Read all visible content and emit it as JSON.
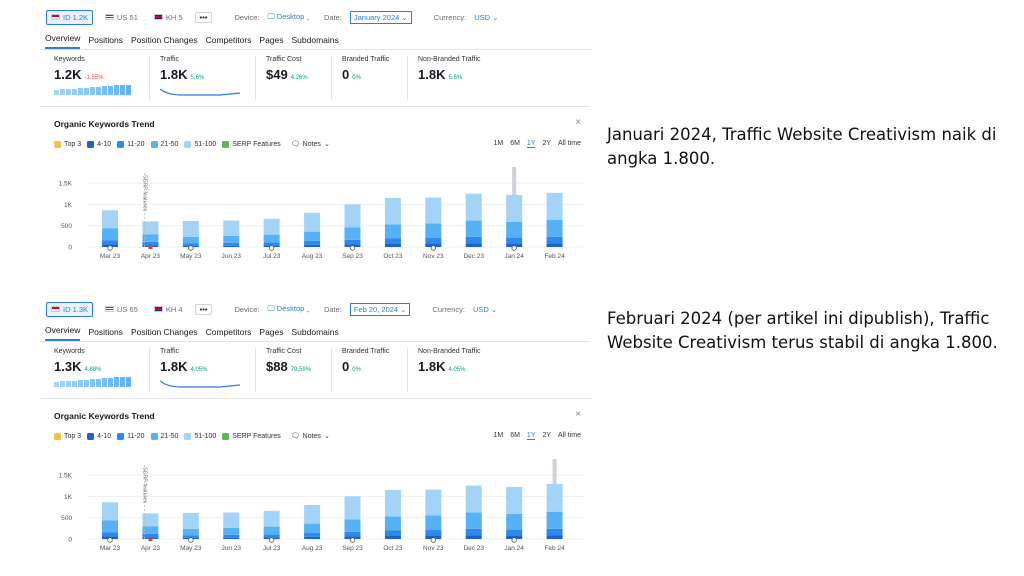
{
  "panels": [
    {
      "toolbar": {
        "databases": [
          {
            "flag": "id",
            "label": "ID 1.2K",
            "active": true
          },
          {
            "flag": "us",
            "label": "US 51",
            "active": false
          },
          {
            "flag": "kh",
            "label": "KH 5",
            "active": false
          }
        ],
        "more": "•••",
        "device_label": "Device:",
        "device_value": "Desktop",
        "date_label": "Date:",
        "date_value": "January 2024",
        "currency_label": "Currency:",
        "currency_value": "USD"
      },
      "tabs": [
        "Overview",
        "Positions",
        "Position Changes",
        "Competitors",
        "Pages",
        "Subdomains"
      ],
      "metrics": [
        {
          "label": "Keywords",
          "value": "1.2K",
          "delta": "-1.55%",
          "negative": true,
          "spark": "bars"
        },
        {
          "label": "Traffic",
          "value": "1.8K",
          "delta": "5.6%",
          "negative": false,
          "spark": "line"
        },
        {
          "label": "Traffic Cost",
          "value": "$49",
          "delta": "4.26%",
          "negative": false,
          "spark": "none"
        },
        {
          "label": "Branded Traffic",
          "value": "0",
          "delta": "0%",
          "negative": false,
          "spark": "none"
        },
        {
          "label": "Non-Branded Traffic",
          "value": "1.8K",
          "delta": "5.6%",
          "negative": false,
          "spark": "none"
        }
      ],
      "trend": {
        "title": "Organic Keywords Trend",
        "close": "×",
        "legend": [
          {
            "label": "Top 3",
            "color": "#f5c342"
          },
          {
            "label": "4-10",
            "color": "#1e63c9"
          },
          {
            "label": "11-20",
            "color": "#2a8af0"
          },
          {
            "label": "21-50",
            "color": "#56b1f5"
          },
          {
            "label": "51-100",
            "color": "#a3d4f8"
          },
          {
            "label": "SERP Features",
            "color": "#5cb85c"
          }
        ],
        "notes": "Notes",
        "ranges": [
          "1M",
          "6M",
          "1Y",
          "2Y",
          "All time"
        ],
        "active_range": "1Y",
        "serp_annotation": "SERP features"
      },
      "chart_data": {
        "type": "bar",
        "categories": [
          "Mar 23",
          "Apr 23",
          "May 23",
          "Jun 23",
          "Jul 23",
          "Aug 23",
          "Sep 23",
          "Oct 23",
          "Nov 23",
          "Dec 23",
          "Jan 24",
          "Feb 24"
        ],
        "y_ticks": [
          "1.5K",
          "1K",
          "500",
          "0"
        ],
        "ylim": [
          0,
          1500
        ],
        "series": [
          {
            "name": "4-10",
            "values": [
              60,
              40,
              30,
              30,
              40,
              50,
              60,
              80,
              80,
              90,
              80,
              90
            ]
          },
          {
            "name": "11-20",
            "values": [
              100,
              80,
              60,
              70,
              70,
              90,
              110,
              120,
              130,
              150,
              140,
              150
            ]
          },
          {
            "name": "21-50",
            "values": [
              280,
              180,
              150,
              160,
              180,
              220,
              290,
              330,
              340,
              380,
              370,
              400
            ]
          },
          {
            "name": "51-100",
            "values": [
              420,
              300,
              370,
              360,
              370,
              440,
              540,
              620,
              610,
              630,
              630,
              630
            ]
          }
        ],
        "highlight_index": 10
      }
    },
    {
      "toolbar": {
        "databases": [
          {
            "flag": "id",
            "label": "ID 1.3K",
            "active": true
          },
          {
            "flag": "us",
            "label": "US 65",
            "active": false
          },
          {
            "flag": "kh",
            "label": "KH 4",
            "active": false
          }
        ],
        "more": "•••",
        "device_label": "Device:",
        "device_value": "Desktop",
        "date_label": "Date:",
        "date_value": "Feb 20, 2024",
        "currency_label": "Currency:",
        "currency_value": "USD"
      },
      "tabs": [
        "Overview",
        "Positions",
        "Position Changes",
        "Competitors",
        "Pages",
        "Subdomains"
      ],
      "metrics": [
        {
          "label": "Keywords",
          "value": "1.3K",
          "delta": "4.88%",
          "negative": false,
          "spark": "bars"
        },
        {
          "label": "Traffic",
          "value": "1.8K",
          "delta": "4.05%",
          "negative": false,
          "spark": "line"
        },
        {
          "label": "Traffic Cost",
          "value": "$88",
          "delta": "79.59%",
          "negative": false,
          "spark": "none"
        },
        {
          "label": "Branded Traffic",
          "value": "0",
          "delta": "0%",
          "negative": false,
          "spark": "none"
        },
        {
          "label": "Non-Branded Traffic",
          "value": "1.8K",
          "delta": "4.05%",
          "negative": false,
          "spark": "none"
        }
      ],
      "trend": {
        "title": "Organic Keywords Trend",
        "close": "×",
        "legend": [
          {
            "label": "Top 3",
            "color": "#f5c342"
          },
          {
            "label": "4-10",
            "color": "#1e63c9"
          },
          {
            "label": "11-20",
            "color": "#2a8af0"
          },
          {
            "label": "21-50",
            "color": "#56b1f5"
          },
          {
            "label": "51-100",
            "color": "#a3d4f8"
          },
          {
            "label": "SERP Features",
            "color": "#5cb85c"
          }
        ],
        "notes": "Notes",
        "ranges": [
          "1M",
          "6M",
          "1Y",
          "2Y",
          "All time"
        ],
        "active_range": "1Y",
        "serp_annotation": "SERP features"
      },
      "chart_data": {
        "type": "bar",
        "categories": [
          "Mar 23",
          "Apr 23",
          "May 23",
          "Jun 23",
          "Jul 23",
          "Aug 23",
          "Sep 23",
          "Oct 23",
          "Nov 23",
          "Dec 23",
          "Jan 24",
          "Feb 24"
        ],
        "y_ticks": [
          "1.5K",
          "1K",
          "500",
          "0"
        ],
        "ylim": [
          0,
          1500
        ],
        "series": [
          {
            "name": "4-10",
            "values": [
              60,
              40,
              30,
              30,
              40,
              50,
              60,
              80,
              80,
              90,
              80,
              90
            ]
          },
          {
            "name": "11-20",
            "values": [
              100,
              80,
              60,
              70,
              70,
              90,
              110,
              120,
              130,
              150,
              140,
              150
            ]
          },
          {
            "name": "21-50",
            "values": [
              280,
              180,
              150,
              160,
              180,
              220,
              290,
              330,
              340,
              380,
              370,
              400
            ]
          },
          {
            "name": "51-100",
            "values": [
              420,
              300,
              370,
              360,
              370,
              440,
              540,
              620,
              610,
              630,
              630,
              650
            ]
          }
        ],
        "highlight_index": 11
      }
    }
  ],
  "captions": [
    "Januari 2024, Traffic Website Creativism naik di angka 1.800.",
    "Februari 2024 (per artikel ini dipublish), Traffic Website Creativism terus stabil di angka 1.800."
  ]
}
